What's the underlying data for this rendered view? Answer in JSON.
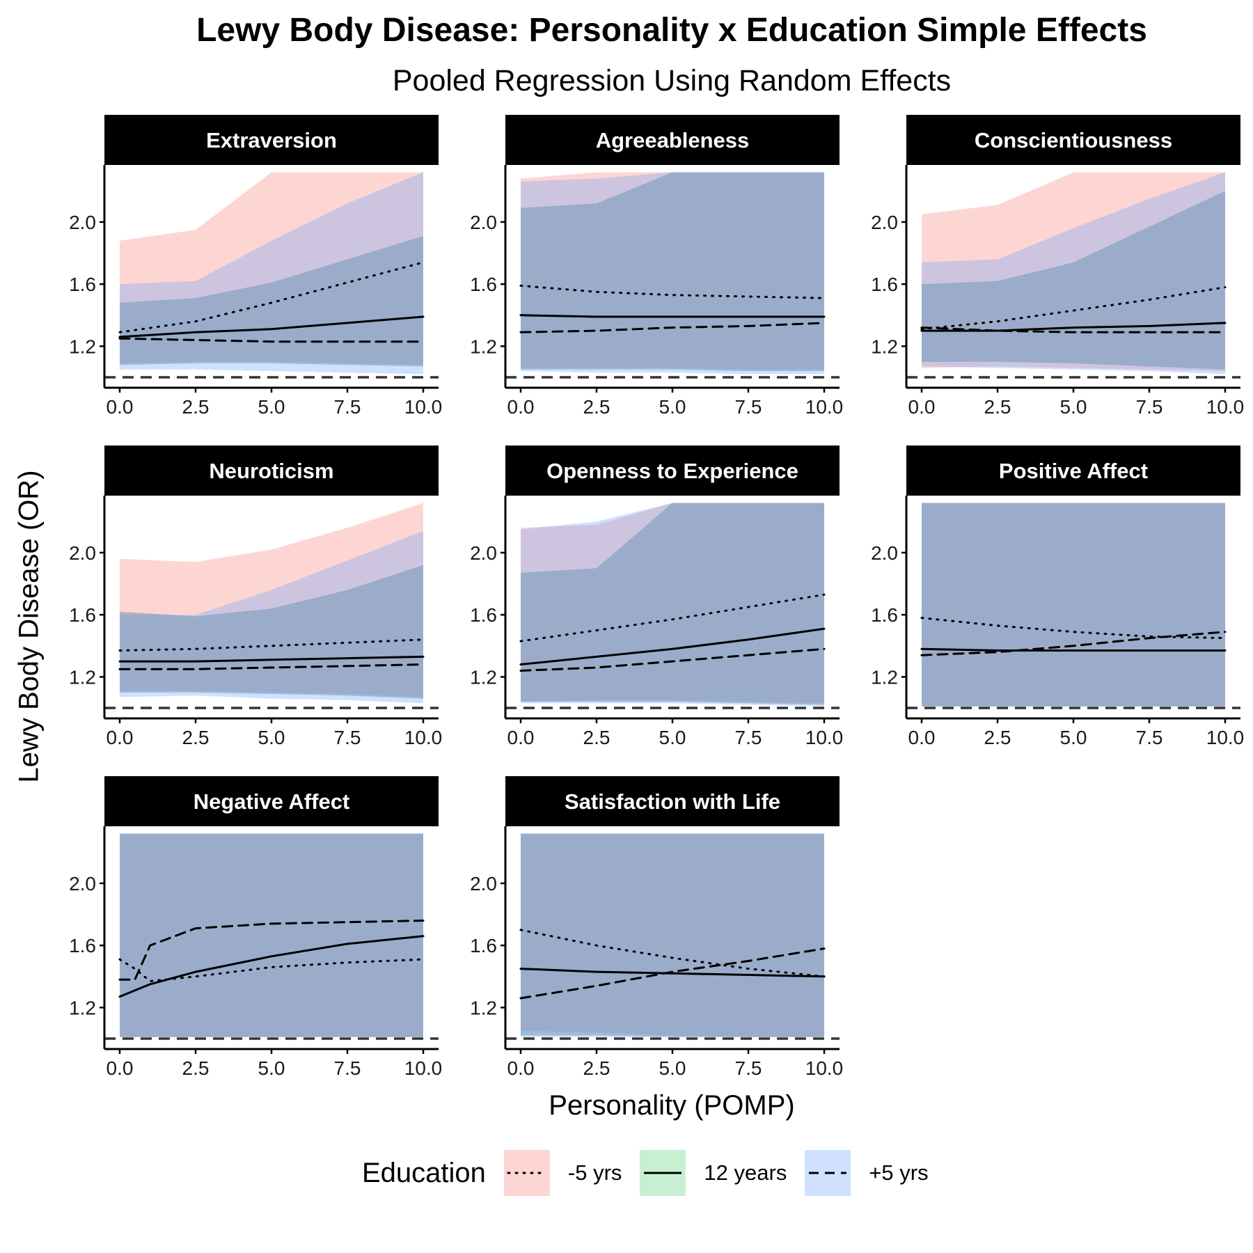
{
  "title": "Lewy Body Disease: Personality x Education Simple Effects",
  "subtitle": "Pooled Regression Using Random Effects",
  "x_axis_label": "Personality (POMP)",
  "y_axis_label": "Lewy Body Disease (OR)",
  "legend": {
    "title": "Education",
    "items": [
      {
        "label": "-5 yrs",
        "line": "dotted",
        "fill": "#f8766d"
      },
      {
        "label": "12 years",
        "line": "solid",
        "fill": "#00ba38"
      },
      {
        "label": "+5 yrs",
        "line": "dashed",
        "fill": "#619cff"
      }
    ]
  },
  "colors": {
    "minus5_fill": "#f8766d",
    "years12_fill": "#5b8c8f",
    "plus5_fill": "#619cff",
    "overlap_fill": "#a5b9be",
    "line": "#000000",
    "reference_line": "#333333",
    "strip_bg": "#000000",
    "strip_text": "#ffffff"
  },
  "chart_data": [
    {
      "type": "line",
      "panel": "Extraversion",
      "x": [
        0,
        2.5,
        5,
        7.5,
        10
      ],
      "xlim": [
        0,
        10
      ],
      "ylim": [
        1.0,
        2.3
      ],
      "x_ticks": [
        "0.0",
        "2.5",
        "5.0",
        "7.5",
        "10.0"
      ],
      "y_ticks": [
        "1.2",
        "1.6",
        "2.0"
      ],
      "reference_line": 1.0,
      "series": [
        {
          "name": "-5 yrs",
          "values": [
            1.29,
            1.36,
            1.48,
            1.61,
            1.74
          ],
          "lower": [
            1.09,
            1.1,
            1.1,
            1.09,
            1.08
          ],
          "upper": [
            1.88,
            1.95,
            2.32,
            2.32,
            2.32
          ]
        },
        {
          "name": "12 years",
          "values": [
            1.26,
            1.29,
            1.31,
            1.35,
            1.39
          ],
          "lower": [
            1.08,
            1.09,
            1.09,
            1.08,
            1.07
          ],
          "upper": [
            1.48,
            1.51,
            1.61,
            1.76,
            1.91
          ]
        },
        {
          "name": "+5 yrs",
          "values": [
            1.25,
            1.24,
            1.23,
            1.23,
            1.23
          ],
          "lower": [
            1.05,
            1.05,
            1.04,
            1.03,
            1.02
          ],
          "upper": [
            1.6,
            1.62,
            1.88,
            2.12,
            2.32
          ]
        }
      ]
    },
    {
      "type": "line",
      "panel": "Agreeableness",
      "x": [
        0,
        2.5,
        5,
        7.5,
        10
      ],
      "xlim": [
        0,
        10
      ],
      "ylim": [
        1.0,
        2.3
      ],
      "x_ticks": [
        "0.0",
        "2.5",
        "5.0",
        "7.5",
        "10.0"
      ],
      "y_ticks": [
        "1.2",
        "1.6",
        "2.0"
      ],
      "reference_line": 1.0,
      "series": [
        {
          "name": "-5 yrs",
          "values": [
            1.59,
            1.55,
            1.53,
            1.52,
            1.51
          ],
          "lower": [
            1.06,
            1.06,
            1.06,
            1.05,
            1.05
          ],
          "upper": [
            2.28,
            2.32,
            2.32,
            2.32,
            2.32
          ]
        },
        {
          "name": "12 years",
          "values": [
            1.4,
            1.39,
            1.39,
            1.39,
            1.39
          ],
          "lower": [
            1.05,
            1.05,
            1.05,
            1.04,
            1.04
          ],
          "upper": [
            2.09,
            2.12,
            2.32,
            2.32,
            2.32
          ]
        },
        {
          "name": "+5 yrs",
          "values": [
            1.29,
            1.3,
            1.32,
            1.33,
            1.35
          ],
          "lower": [
            1.04,
            1.03,
            1.03,
            1.02,
            1.02
          ],
          "upper": [
            2.26,
            2.28,
            2.32,
            2.32,
            2.32
          ]
        }
      ]
    },
    {
      "type": "line",
      "panel": "Conscientiousness",
      "x": [
        0,
        2.5,
        5,
        7.5,
        10
      ],
      "xlim": [
        0,
        10
      ],
      "ylim": [
        1.0,
        2.3
      ],
      "x_ticks": [
        "0.0",
        "2.5",
        "5.0",
        "7.5",
        "10.0"
      ],
      "y_ticks": [
        "1.2",
        "1.6",
        "2.0"
      ],
      "reference_line": 1.0,
      "series": [
        {
          "name": "-5 yrs",
          "values": [
            1.31,
            1.36,
            1.43,
            1.5,
            1.58
          ],
          "lower": [
            1.06,
            1.07,
            1.06,
            1.05,
            1.04
          ],
          "upper": [
            2.05,
            2.11,
            2.32,
            2.32,
            2.32
          ]
        },
        {
          "name": "12 years",
          "values": [
            1.3,
            1.3,
            1.32,
            1.33,
            1.35
          ],
          "lower": [
            1.1,
            1.1,
            1.09,
            1.07,
            1.05
          ],
          "upper": [
            1.6,
            1.62,
            1.74,
            1.97,
            2.2
          ]
        },
        {
          "name": "+5 yrs",
          "values": [
            1.32,
            1.3,
            1.29,
            1.29,
            1.29
          ],
          "lower": [
            1.07,
            1.06,
            1.05,
            1.04,
            1.02
          ],
          "upper": [
            1.74,
            1.76,
            1.96,
            2.15,
            2.32
          ]
        }
      ]
    },
    {
      "type": "line",
      "panel": "Neuroticism",
      "x": [
        0,
        2.5,
        5,
        7.5,
        10
      ],
      "xlim": [
        0,
        10
      ],
      "ylim": [
        1.0,
        2.3
      ],
      "x_ticks": [
        "0.0",
        "2.5",
        "5.0",
        "7.5",
        "10.0"
      ],
      "y_ticks": [
        "1.2",
        "1.6",
        "2.0"
      ],
      "reference_line": 1.0,
      "series": [
        {
          "name": "-5 yrs",
          "values": [
            1.37,
            1.38,
            1.4,
            1.42,
            1.44
          ],
          "lower": [
            1.11,
            1.11,
            1.1,
            1.09,
            1.07
          ],
          "upper": [
            1.96,
            1.94,
            2.02,
            2.16,
            2.32
          ]
        },
        {
          "name": "12 years",
          "values": [
            1.3,
            1.3,
            1.31,
            1.32,
            1.33
          ],
          "lower": [
            1.1,
            1.1,
            1.09,
            1.08,
            1.06
          ],
          "upper": [
            1.62,
            1.59,
            1.64,
            1.76,
            1.92
          ]
        },
        {
          "name": "+5 yrs",
          "values": [
            1.25,
            1.25,
            1.26,
            1.27,
            1.28
          ],
          "lower": [
            1.07,
            1.08,
            1.06,
            1.05,
            1.03
          ],
          "upper": [
            1.6,
            1.6,
            1.76,
            1.95,
            2.14
          ]
        }
      ]
    },
    {
      "type": "line",
      "panel": "Openness to Experience",
      "x": [
        0,
        2.5,
        5,
        7.5,
        10
      ],
      "xlim": [
        0,
        10
      ],
      "ylim": [
        1.0,
        2.3
      ],
      "x_ticks": [
        "0.0",
        "2.5",
        "5.0",
        "7.5",
        "10.0"
      ],
      "y_ticks": [
        "1.2",
        "1.6",
        "2.0"
      ],
      "reference_line": 1.0,
      "series": [
        {
          "name": "-5 yrs",
          "values": [
            1.43,
            1.5,
            1.57,
            1.65,
            1.73
          ],
          "lower": [
            1.04,
            1.05,
            1.05,
            1.04,
            1.03
          ],
          "upper": [
            2.16,
            2.18,
            2.32,
            2.32,
            2.32
          ]
        },
        {
          "name": "12 years",
          "values": [
            1.28,
            1.33,
            1.38,
            1.44,
            1.51
          ],
          "lower": [
            1.04,
            1.04,
            1.04,
            1.03,
            1.02
          ],
          "upper": [
            1.87,
            1.9,
            2.32,
            2.32,
            2.32
          ]
        },
        {
          "name": "+5 yrs",
          "values": [
            1.24,
            1.26,
            1.3,
            1.34,
            1.38
          ],
          "lower": [
            1.03,
            1.03,
            1.03,
            1.02,
            1.01
          ],
          "upper": [
            2.15,
            2.2,
            2.32,
            2.32,
            2.32
          ]
        }
      ]
    },
    {
      "type": "line",
      "panel": "Positive Affect",
      "x": [
        0,
        2.5,
        5,
        7.5,
        10
      ],
      "xlim": [
        0,
        10
      ],
      "ylim": [
        1.0,
        2.3
      ],
      "x_ticks": [
        "0.0",
        "2.5",
        "5.0",
        "7.5",
        "10.0"
      ],
      "y_ticks": [
        "1.2",
        "1.6",
        "2.0"
      ],
      "reference_line": 1.0,
      "series": [
        {
          "name": "-5 yrs",
          "values": [
            1.58,
            1.53,
            1.49,
            1.46,
            1.45
          ],
          "lower": [
            1.01,
            1.01,
            1.01,
            1.01,
            1.01
          ],
          "upper": [
            2.32,
            2.32,
            2.32,
            2.32,
            2.32
          ]
        },
        {
          "name": "12 years",
          "values": [
            1.38,
            1.37,
            1.37,
            1.37,
            1.37
          ],
          "lower": [
            1.01,
            1.01,
            1.01,
            1.01,
            1.01
          ],
          "upper": [
            2.32,
            2.32,
            2.32,
            2.32,
            2.32
          ]
        },
        {
          "name": "+5 yrs",
          "values": [
            1.34,
            1.36,
            1.4,
            1.45,
            1.49
          ],
          "lower": [
            1.01,
            1.01,
            1.01,
            1.01,
            1.01
          ],
          "upper": [
            2.32,
            2.32,
            2.32,
            2.32,
            2.32
          ]
        }
      ]
    },
    {
      "type": "line",
      "panel": "Negative Affect",
      "x": [
        0,
        0.5,
        1,
        2.5,
        5,
        7.5,
        10
      ],
      "xlim": [
        0,
        10
      ],
      "ylim": [
        1.0,
        2.3
      ],
      "x_ticks": [
        "0.0",
        "2.5",
        "5.0",
        "7.5",
        "10.0"
      ],
      "y_ticks": [
        "1.2",
        "1.6",
        "2.0"
      ],
      "reference_line": 1.0,
      "series": [
        {
          "name": "-5 yrs",
          "values": [
            1.51,
            1.45,
            1.37,
            1.4,
            1.46,
            1.49,
            1.51
          ],
          "lower": [
            1.01,
            1.01,
            1.01,
            1.01,
            1.01,
            1.01,
            1.01
          ],
          "upper": [
            2.32,
            2.32,
            2.32,
            2.32,
            2.32,
            2.32,
            2.32
          ]
        },
        {
          "name": "12 years",
          "values": [
            1.27,
            1.31,
            1.35,
            1.43,
            1.53,
            1.61,
            1.66
          ],
          "lower": [
            1.01,
            1.01,
            1.01,
            1.01,
            1.01,
            1.01,
            1.01
          ],
          "upper": [
            2.32,
            2.32,
            2.32,
            2.32,
            2.32,
            2.32,
            2.32
          ]
        },
        {
          "name": "+5 yrs",
          "values": [
            1.38,
            1.38,
            1.6,
            1.71,
            1.74,
            1.75,
            1.76
          ],
          "lower": [
            1.01,
            1.01,
            1.01,
            1.01,
            1.01,
            1.01,
            1.01
          ],
          "upper": [
            2.32,
            2.32,
            2.32,
            2.32,
            2.32,
            2.32,
            2.32
          ]
        }
      ]
    },
    {
      "type": "line",
      "panel": "Satisfaction with Life",
      "x": [
        0,
        2.5,
        5,
        7.5,
        10
      ],
      "xlim": [
        0,
        10
      ],
      "ylim": [
        1.0,
        2.3
      ],
      "x_ticks": [
        "0.0",
        "2.5",
        "5.0",
        "7.5",
        "10.0"
      ],
      "y_ticks": [
        "1.2",
        "1.6",
        "2.0"
      ],
      "reference_line": 1.0,
      "series": [
        {
          "name": "-5 yrs",
          "values": [
            1.7,
            1.6,
            1.52,
            1.45,
            1.4
          ],
          "lower": [
            1.05,
            1.04,
            1.02,
            1.01,
            1.01
          ],
          "upper": [
            2.32,
            2.32,
            2.32,
            2.32,
            2.32
          ]
        },
        {
          "name": "12 years",
          "values": [
            1.45,
            1.43,
            1.42,
            1.41,
            1.4
          ],
          "lower": [
            1.02,
            1.02,
            1.01,
            1.01,
            1.01
          ],
          "upper": [
            2.32,
            2.32,
            2.32,
            2.32,
            2.32
          ]
        },
        {
          "name": "+5 yrs",
          "values": [
            1.26,
            1.34,
            1.43,
            1.5,
            1.58
          ],
          "lower": [
            1.01,
            1.01,
            1.01,
            1.01,
            1.01
          ],
          "upper": [
            2.32,
            2.32,
            2.32,
            2.32,
            2.32
          ]
        }
      ]
    }
  ]
}
